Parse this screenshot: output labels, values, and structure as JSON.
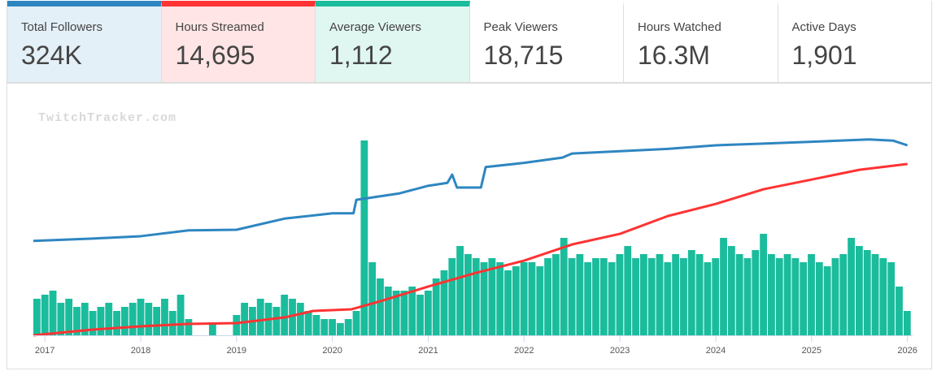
{
  "stats": [
    {
      "label": "Total Followers",
      "value": "324K",
      "accent": "#2e86c1",
      "bg": "#e4f0f7"
    },
    {
      "label": "Hours Streamed",
      "value": "14,695",
      "accent": "#ff3333",
      "bg": "#ffe5e5"
    },
    {
      "label": "Average Viewers",
      "value": "1,112",
      "accent": "#1abc9c",
      "bg": "#e0f6f1"
    },
    {
      "label": "Peak Viewers",
      "value": "18,715",
      "accent": null,
      "bg": "#ffffff"
    },
    {
      "label": "Hours Watched",
      "value": "16.3M",
      "accent": null,
      "bg": "#ffffff"
    },
    {
      "label": "Active Days",
      "value": "1,901",
      "accent": null,
      "bg": "#ffffff"
    }
  ],
  "watermark": "TwitchTracker.com",
  "chart_data": {
    "type": "bar+line",
    "x_ticks": [
      "2017",
      "2018",
      "2019",
      "2020",
      "2021",
      "2022",
      "2023",
      "2024",
      "2025",
      "2026"
    ],
    "xlim": [
      2016.88,
      2026.02
    ],
    "bars": {
      "name": "Average Viewers",
      "color": "#1abc9c",
      "start": 2016.88,
      "step": 0.0833,
      "ylim": [
        0,
        2000
      ],
      "values": [
        360,
        400,
        440,
        320,
        360,
        280,
        320,
        240,
        280,
        320,
        240,
        280,
        320,
        360,
        320,
        280,
        360,
        240,
        400,
        160,
        0,
        0,
        120,
        0,
        0,
        200,
        320,
        280,
        360,
        320,
        280,
        400,
        360,
        320,
        240,
        200,
        160,
        160,
        120,
        160,
        240,
        1920,
        720,
        560,
        480,
        440,
        440,
        480,
        400,
        440,
        560,
        640,
        760,
        880,
        800,
        760,
        720,
        760,
        720,
        640,
        680,
        720,
        720,
        680,
        760,
        800,
        960,
        760,
        800,
        720,
        760,
        760,
        720,
        800,
        880,
        760,
        800,
        760,
        800,
        720,
        800,
        760,
        840,
        800,
        720,
        760,
        960,
        880,
        800,
        760,
        840,
        1000,
        800,
        760,
        800,
        760,
        720,
        800,
        720,
        680,
        760,
        800,
        960,
        880,
        840,
        800,
        760,
        720,
        480,
        240
      ]
    },
    "series": [
      {
        "name": "Followers (K)",
        "color": "#2e86c1",
        "ylim": [
          0,
          324
        ],
        "points": [
          [
            2016.88,
            161
          ],
          [
            2017.5,
            165
          ],
          [
            2018.0,
            169
          ],
          [
            2018.5,
            179
          ],
          [
            2019.0,
            180
          ],
          [
            2019.5,
            199
          ],
          [
            2020.0,
            208
          ],
          [
            2020.22,
            208
          ],
          [
            2020.25,
            231
          ],
          [
            2020.7,
            242
          ],
          [
            2021.0,
            255
          ],
          [
            2021.2,
            260
          ],
          [
            2021.25,
            274
          ],
          [
            2021.3,
            252
          ],
          [
            2021.55,
            252
          ],
          [
            2021.6,
            287
          ],
          [
            2022.0,
            294
          ],
          [
            2022.4,
            303
          ],
          [
            2022.5,
            310
          ],
          [
            2023.0,
            314
          ],
          [
            2023.5,
            318
          ],
          [
            2024.0,
            324
          ],
          [
            2024.5,
            327
          ],
          [
            2025.0,
            330
          ],
          [
            2025.6,
            334
          ],
          [
            2025.85,
            332
          ],
          [
            2026.0,
            324
          ]
        ]
      },
      {
        "name": "Hours Streamed (cumulative)",
        "color": "#ff3333",
        "ylim": [
          0,
          14695
        ],
        "points": [
          [
            2016.88,
            0
          ],
          [
            2017.5,
            490
          ],
          [
            2018.0,
            770
          ],
          [
            2018.5,
            975
          ],
          [
            2019.0,
            1045
          ],
          [
            2019.5,
            1530
          ],
          [
            2019.8,
            2090
          ],
          [
            2020.2,
            2230
          ],
          [
            2020.5,
            2920
          ],
          [
            2021.0,
            4180
          ],
          [
            2021.5,
            5360
          ],
          [
            2022.0,
            6400
          ],
          [
            2022.5,
            7790
          ],
          [
            2023.0,
            8700
          ],
          [
            2023.5,
            10230
          ],
          [
            2024.0,
            11270
          ],
          [
            2024.5,
            12530
          ],
          [
            2025.0,
            13360
          ],
          [
            2025.5,
            14200
          ],
          [
            2026.0,
            14695
          ]
        ]
      }
    ]
  }
}
